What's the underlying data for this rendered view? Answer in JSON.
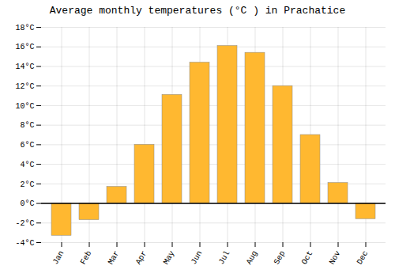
{
  "chart_data": {
    "type": "bar",
    "title": "Average monthly temperatures (°C ) in Prachatice",
    "categories": [
      "Jan",
      "Feb",
      "Mar",
      "Apr",
      "May",
      "Jun",
      "Jul",
      "Aug",
      "Sep",
      "Oct",
      "Nov",
      "Dec"
    ],
    "values": [
      -3.3,
      -1.7,
      1.7,
      6.0,
      11.1,
      14.4,
      16.1,
      15.4,
      12.0,
      7.0,
      2.1,
      -1.6
    ],
    "color": "#FFB830",
    "ylim": [
      -4,
      18
    ],
    "yticks": [
      {
        "value": -4,
        "label": "-4°C"
      },
      {
        "value": -2,
        "label": "-2°C"
      },
      {
        "value": 0,
        "label": "0°C"
      },
      {
        "value": 2,
        "label": "2°C"
      },
      {
        "value": 4,
        "label": "4°C"
      },
      {
        "value": 6,
        "label": "6°C"
      },
      {
        "value": 8,
        "label": "8°C"
      },
      {
        "value": 10,
        "label": "10°C"
      },
      {
        "value": 12,
        "label": "12°C"
      },
      {
        "value": 14,
        "label": "14°C"
      },
      {
        "value": 16,
        "label": "16°C"
      },
      {
        "value": 18,
        "label": "18°C"
      }
    ],
    "grid": true
  }
}
